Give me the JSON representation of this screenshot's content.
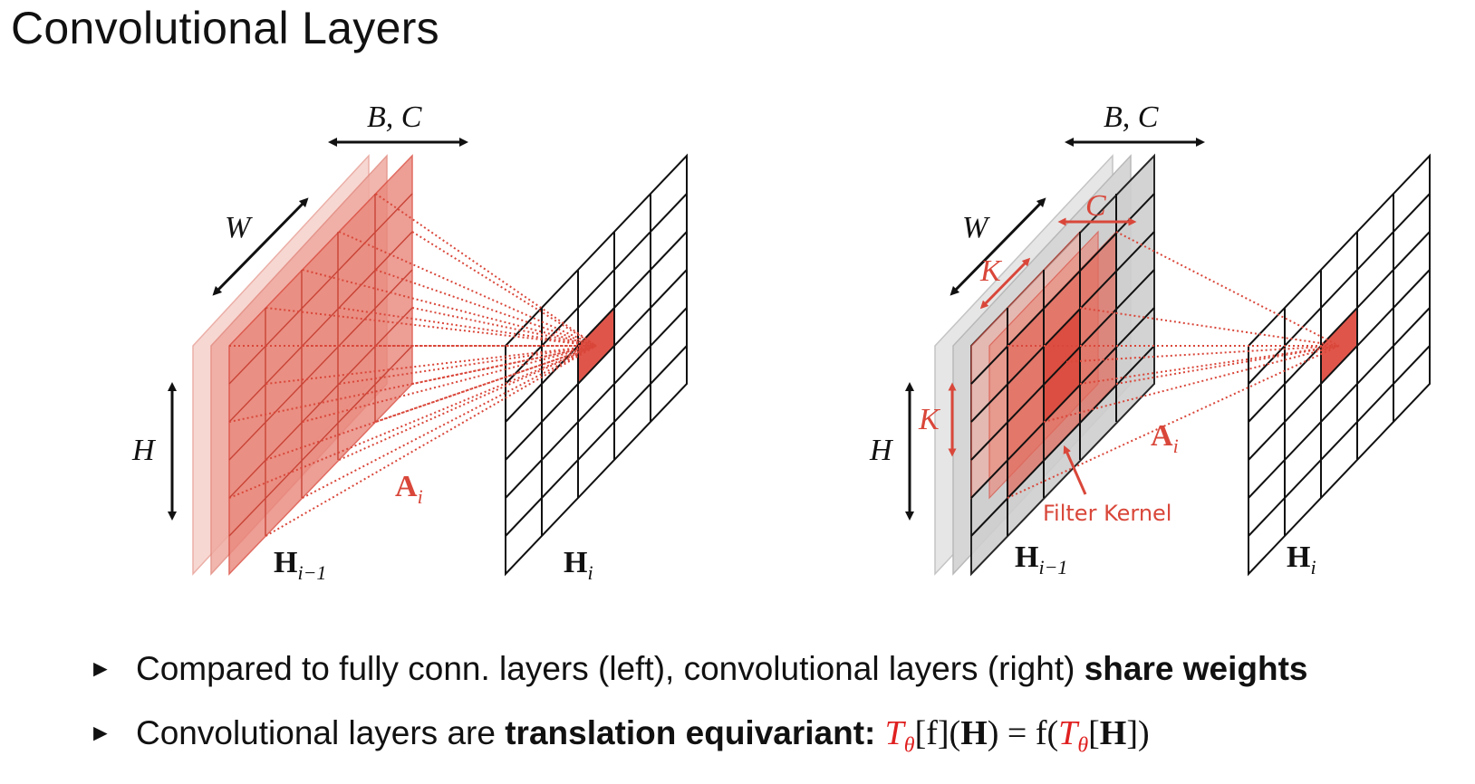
{
  "slide": {
    "title": "Convolutional Layers"
  },
  "left_diagram": {
    "label_bc": "B, C",
    "label_w": "W",
    "label_h": "H",
    "label_ai": "A",
    "label_ai_sub": "i",
    "label_input": "H",
    "label_input_sub": "i−1",
    "label_output": "H",
    "label_output_sub": "i"
  },
  "right_diagram": {
    "label_bc": "B, C",
    "label_w": "W",
    "label_h": "H",
    "label_c": "C",
    "label_k_top": "K",
    "label_k_side": "K",
    "label_ai": "A",
    "label_ai_sub": "i",
    "label_filter": "Filter Kernel",
    "label_input": "H",
    "label_input_sub": "i−1",
    "label_output": "H",
    "label_output_sub": "i"
  },
  "bullets": {
    "b1_text": "Compared to fully conn. layers (left), convolutional layers (right) ",
    "b1_bold": "share weights",
    "b2_text": "Convolutional layers are ",
    "b2_bold": "translation equivariant:",
    "b2_eq_T": "T",
    "b2_eq_theta": "θ",
    "b2_eq_rest1": "[f](",
    "b2_eq_H": "H",
    "b2_eq_rest2": ") = f(",
    "b2_eq_rest3": "[",
    "b2_eq_rest4": "])"
  },
  "colors": {
    "accent_red": "#d9473a",
    "light_red": "#f2b8b0",
    "gray_plane": "#cfcfcf",
    "black": "#111111"
  }
}
